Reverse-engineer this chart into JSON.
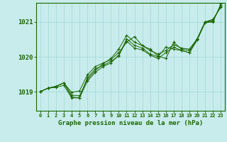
{
  "title": "Graphe pression niveau de la mer (hPa)",
  "xlabel_hours": [
    0,
    1,
    2,
    3,
    4,
    5,
    6,
    7,
    8,
    9,
    10,
    11,
    12,
    13,
    14,
    15,
    16,
    17,
    18,
    19,
    20,
    21,
    22,
    23
  ],
  "ylim": [
    1018.45,
    1021.55
  ],
  "yticks": [
    1019,
    1020,
    1021
  ],
  "bg_color": "#c8ecec",
  "line_color": "#1a6600",
  "grid_color": "#aadddd",
  "lines": [
    [
      1019.0,
      1019.1,
      1019.15,
      1019.25,
      1018.85,
      1018.82,
      1019.4,
      1019.65,
      1019.75,
      1019.87,
      1020.02,
      1020.52,
      1020.33,
      1020.25,
      1020.08,
      1020.0,
      1020.28,
      1020.22,
      1020.18,
      1020.12,
      1020.52,
      1021.0,
      1021.08,
      1021.42
    ],
    [
      1019.0,
      1019.1,
      1019.15,
      1019.25,
      1018.98,
      1019.02,
      1019.48,
      1019.72,
      1019.82,
      1019.92,
      1020.12,
      1020.42,
      1020.58,
      1020.32,
      1020.22,
      1020.02,
      1019.95,
      1020.42,
      1020.22,
      1020.18,
      1020.52,
      1021.0,
      1021.02,
      1021.48
    ],
    [
      1019.0,
      1019.1,
      1019.15,
      1019.25,
      1018.9,
      1018.88,
      1019.35,
      1019.6,
      1019.8,
      1019.95,
      1020.22,
      1020.62,
      1020.42,
      1020.32,
      1020.18,
      1020.08,
      1020.18,
      1020.35,
      1020.25,
      1020.22,
      1020.52,
      1021.0,
      1021.05,
      1021.45
    ],
    [
      1019.0,
      1019.1,
      1019.12,
      1019.18,
      1018.82,
      1018.82,
      1019.3,
      1019.55,
      1019.72,
      1019.82,
      1020.05,
      1020.45,
      1020.25,
      1020.2,
      1020.05,
      1019.95,
      1020.12,
      1020.28,
      1020.18,
      1020.12,
      1020.48,
      1020.98,
      1021.0,
      1021.52
    ]
  ]
}
